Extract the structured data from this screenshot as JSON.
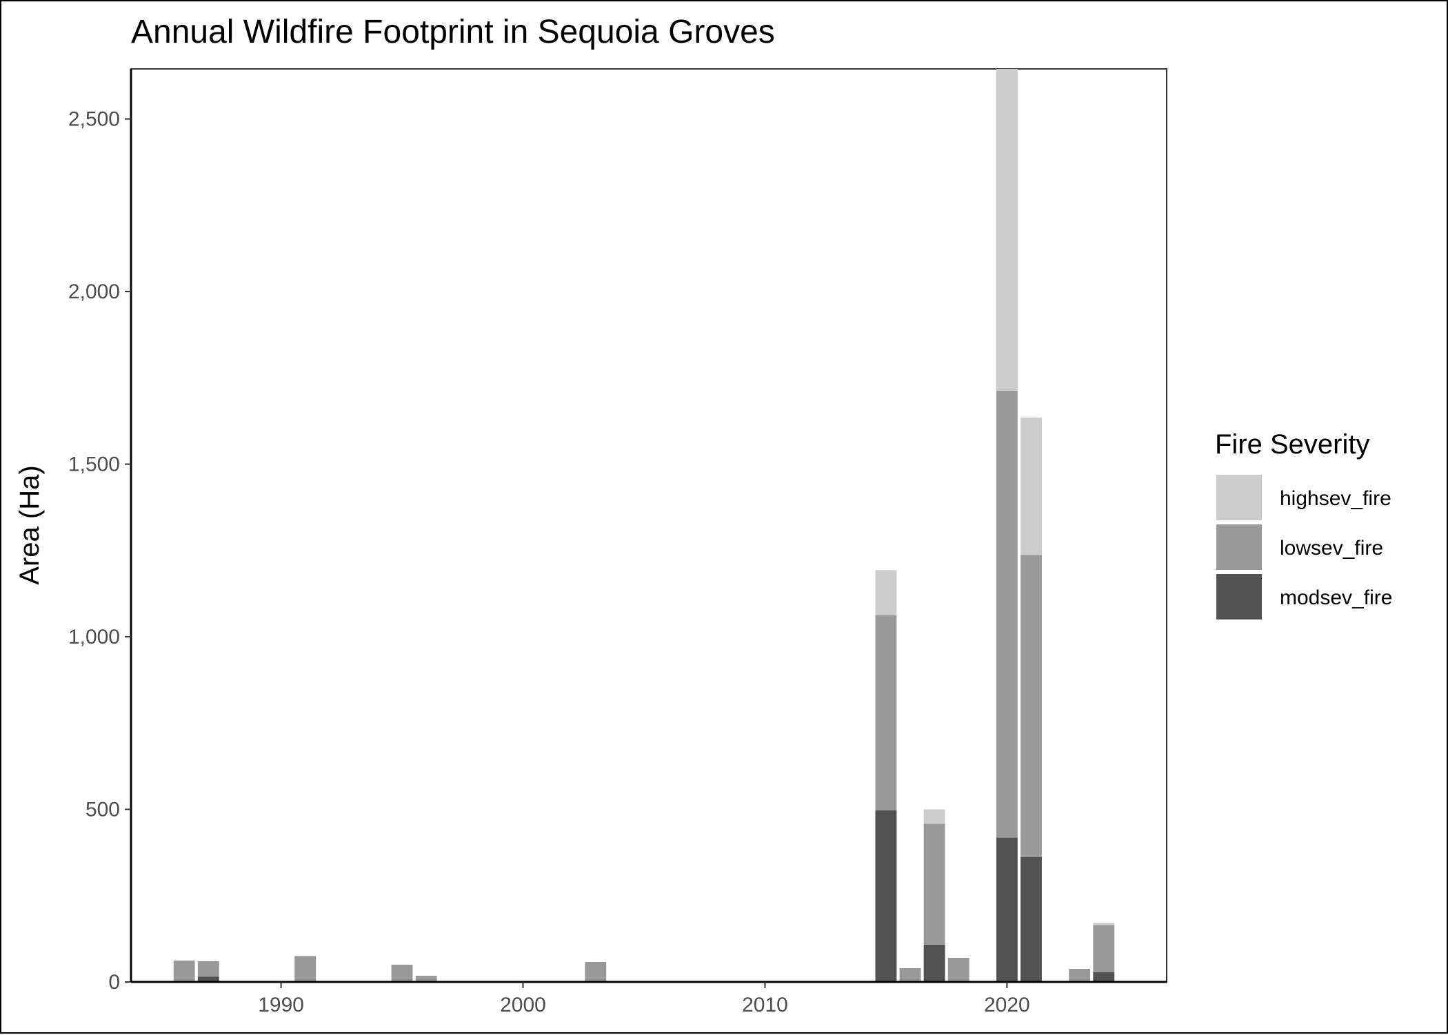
{
  "chart_data": {
    "type": "bar",
    "stacked": true,
    "title": "Annual Wildfire Footprint in Sequoia Groves",
    "xlabel": "",
    "ylabel": "Area (Ha)",
    "xlim": [
      1983.8,
      2026.6
    ],
    "ylim": [
      0,
      2645
    ],
    "x_ticks": [
      1990,
      2000,
      2010,
      2020
    ],
    "x_tick_labels": [
      "1990",
      "2000",
      "2010",
      "2020"
    ],
    "y_ticks": [
      0,
      500,
      1000,
      1500,
      2000,
      2500
    ],
    "y_tick_labels": [
      "0",
      "500",
      "1,000",
      "1,500",
      "2,000",
      "2,500"
    ],
    "grid": false,
    "legend": {
      "title": "Fire Severity",
      "placement": "right",
      "entries": [
        "highsev_fire",
        "lowsev_fire",
        "modsev_fire"
      ]
    },
    "stack_order_bottom_to_top": [
      "modsev_fire",
      "lowsev_fire",
      "highsev_fire"
    ],
    "x": [
      1986,
      1987,
      1991,
      1995,
      1996,
      2003,
      2015,
      2016,
      2017,
      2018,
      2020,
      2021,
      2023,
      2024
    ],
    "series": [
      {
        "name": "modsev_fire",
        "color": "#525252",
        "values": [
          0,
          15,
          0,
          0,
          0,
          0,
          497,
          0,
          108,
          0,
          418,
          362,
          0,
          28
        ]
      },
      {
        "name": "lowsev_fire",
        "color": "#999999",
        "values": [
          62,
          45,
          75,
          50,
          18,
          58,
          565,
          40,
          350,
          70,
          1295,
          875,
          38,
          137
        ]
      },
      {
        "name": "highsev_fire",
        "color": "#cccccc",
        "values": [
          0,
          0,
          0,
          0,
          0,
          0,
          131,
          0,
          42,
          0,
          937,
          398,
          0,
          6
        ]
      }
    ]
  }
}
